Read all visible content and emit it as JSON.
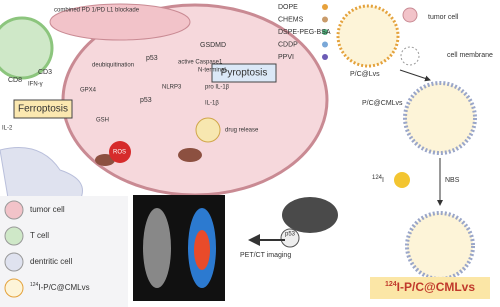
{
  "immune": {
    "blockade": "combined PD 1/PD L1 blockade",
    "cd3": "CD3",
    "cd8": "CD8",
    "ifn": "IFN-γ",
    "il2": "IL-2"
  },
  "cell": {
    "deubiquitination": "deubiquitination",
    "p53_top": "p53",
    "caspase": "active Caspase1",
    "gsdmd": "GSDMD",
    "nterminal": "N-terminal",
    "pro_il": "pro IL-1β",
    "il": "IL-1β",
    "nlrp3": "NLRP3",
    "gpx4": "GPX4",
    "gsh": "GSH",
    "p53_mid": "p53",
    "ros": "ROS",
    "ferroptosis": "Ferroptosis",
    "pyroptosis": "Pyroptosis",
    "drug_release": "drug release"
  },
  "components": [
    "DOPE",
    "CHEMS",
    "DSPE-PEG-BSA",
    "CDDP",
    "PPVI"
  ],
  "synthesis": {
    "lvs": "P/C@Lvs",
    "tumor_cell": "tumor cell",
    "membrane": "cell membrane",
    "cmlvs": "P/C@CMLvs",
    "iso_sup": "124",
    "iso": "I",
    "nbs": "NBS",
    "final_sup": "124",
    "final": "I-P/C@CMLvs"
  },
  "imaging": {
    "pet": "PET/CT imaging",
    "p53": "p53"
  },
  "legend": {
    "items": [
      "tumor cell",
      "T cell",
      "dentritic cell"
    ],
    "last_sup": "124",
    "last": "I-P/C@CMLvs"
  }
}
